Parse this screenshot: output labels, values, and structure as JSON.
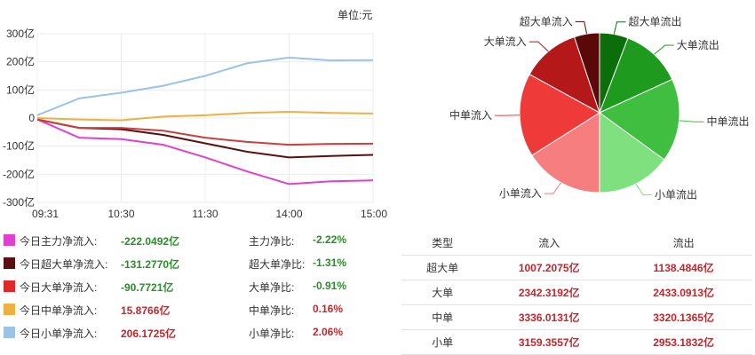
{
  "unit_label": "单位:元",
  "line_chart": {
    "y_ticks": [
      "300亿",
      "200亿",
      "100亿",
      "0",
      "-100亿",
      "-200亿",
      "-300亿"
    ],
    "x_ticks": [
      "09:31",
      "10:30",
      "11:30",
      "14:00",
      "15:00"
    ]
  },
  "chart_data": [
    {
      "type": "line",
      "x": [
        "09:31",
        "10:00",
        "10:30",
        "11:00",
        "11:30",
        "13:30",
        "14:00",
        "14:30",
        "15:00"
      ],
      "ylim": [
        -300,
        300
      ],
      "series": [
        {
          "name": "今日主力净流入",
          "color": "#e040d0",
          "values": [
            -5,
            -70,
            -75,
            -95,
            -140,
            -190,
            -235,
            -225,
            -222
          ]
        },
        {
          "name": "今日超大单净流入",
          "color": "#5a1010",
          "values": [
            -5,
            -35,
            -40,
            -60,
            -90,
            -120,
            -140,
            -135,
            -131
          ]
        },
        {
          "name": "今日大单净流入",
          "color": "#c94040",
          "values": [
            -5,
            -35,
            -35,
            -45,
            -70,
            -85,
            -95,
            -92,
            -91
          ]
        },
        {
          "name": "今日中单净流入",
          "color": "#f0b040",
          "values": [
            0,
            -5,
            -8,
            5,
            10,
            18,
            22,
            18,
            16
          ]
        },
        {
          "name": "今日小单净流入",
          "color": "#9cc2e6",
          "values": [
            10,
            70,
            90,
            115,
            150,
            195,
            215,
            205,
            206
          ]
        }
      ]
    },
    {
      "type": "pie",
      "slices": [
        {
          "label": "超大单流出",
          "value": 1138.4846,
          "color": "#0b6e0b"
        },
        {
          "label": "大单流出",
          "value": 2433.0913,
          "color": "#1e9a1e"
        },
        {
          "label": "中单流出",
          "value": 3320.1365,
          "color": "#3fbe3f"
        },
        {
          "label": "小单流出",
          "value": 2953.1832,
          "color": "#7ee07e"
        },
        {
          "label": "小单流入",
          "value": 3159.3557,
          "color": "#f77e7e"
        },
        {
          "label": "中单流入",
          "value": 3336.0131,
          "color": "#ef3a3a"
        },
        {
          "label": "大单流入",
          "value": 2342.3192,
          "color": "#b41818"
        },
        {
          "label": "超大单流入",
          "value": 1007.2075,
          "color": "#5a0808"
        }
      ]
    }
  ],
  "legend": [
    {
      "label": "今日主力净流入:",
      "value": "-222.0492亿",
      "ratio_label": "主力净比:",
      "ratio": "-2.22%",
      "color": "#e040d0",
      "value_sign": "neg"
    },
    {
      "label": "今日超大单净流入:",
      "value": "-131.2770亿",
      "ratio_label": "超大单净比:",
      "ratio": "-1.31%",
      "color": "#5a1010",
      "value_sign": "neg"
    },
    {
      "label": "今日大单净流入:",
      "value": "-90.7721亿",
      "ratio_label": "大单净比:",
      "ratio": "-0.91%",
      "color": "#e02828",
      "value_sign": "neg"
    },
    {
      "label": "今日中单净流入:",
      "value": "15.8766亿",
      "ratio_label": "中单净比:",
      "ratio": "0.16%",
      "color": "#f0b040",
      "value_sign": "pos"
    },
    {
      "label": "今日小单净流入:",
      "value": "206.1725亿",
      "ratio_label": "小单净比:",
      "ratio": "2.06%",
      "color": "#9cc2e6",
      "value_sign": "pos"
    }
  ],
  "table": {
    "headers": [
      "类型",
      "流入",
      "流出"
    ],
    "rows": [
      {
        "type": "超大单",
        "in": "1007.2075亿",
        "out": "1138.4846亿"
      },
      {
        "type": "大单",
        "in": "2342.3192亿",
        "out": "2433.0913亿"
      },
      {
        "type": "中单",
        "in": "3336.0131亿",
        "out": "3320.1365亿"
      },
      {
        "type": "小单",
        "in": "3159.3557亿",
        "out": "2953.1832亿"
      }
    ]
  }
}
